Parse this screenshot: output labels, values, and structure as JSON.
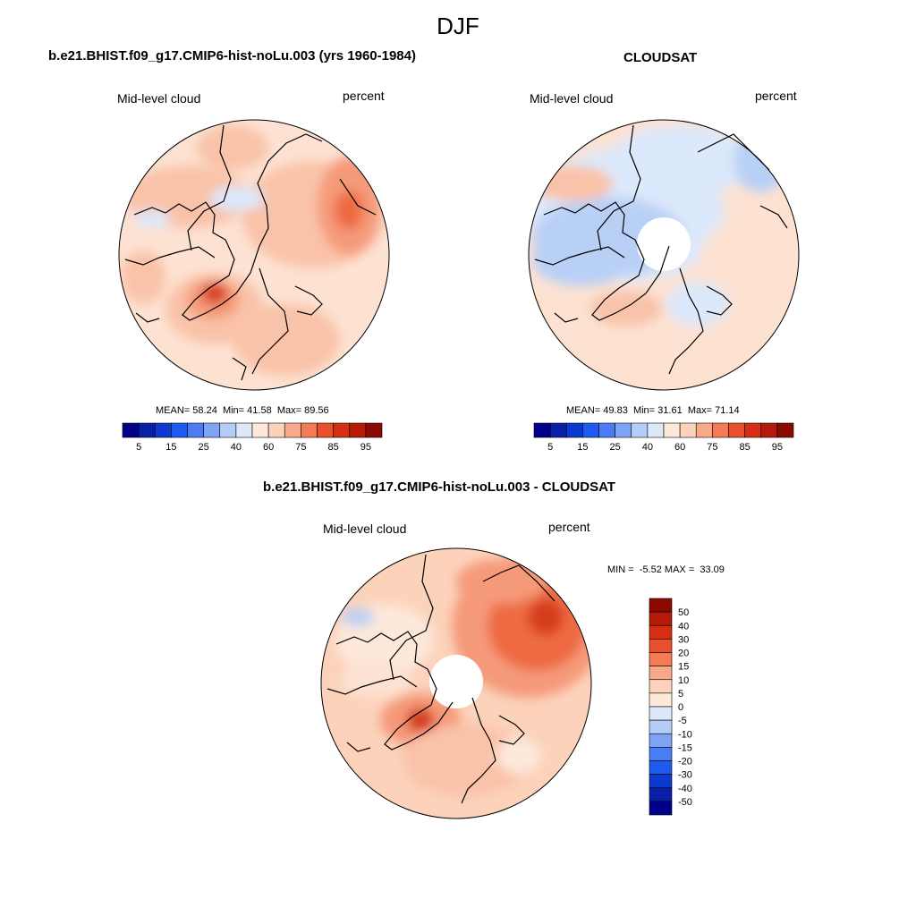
{
  "figure": {
    "title": "DJF",
    "variable": "Mid-level cloud",
    "units": "percent"
  },
  "panels": [
    {
      "title": "b.e21.BHIST.f09_g17.CMIP6-hist-noLu.003 (yrs 1960-1984)",
      "variable": "Mid-level cloud",
      "units": "percent",
      "stats": {
        "mean_label": "MEAN=",
        "mean": "58.24",
        "min_label": "Min=",
        "min": "41.58",
        "max_label": "Max=",
        "max": "89.56"
      }
    },
    {
      "title": "CLOUDSAT",
      "variable": "Mid-level cloud",
      "units": "percent",
      "stats": {
        "mean_label": "MEAN=",
        "mean": "49.83",
        "min_label": "Min=",
        "min": "31.61",
        "max_label": "Max=",
        "max": "71.14"
      }
    },
    {
      "title": "b.e21.BHIST.f09_g17.CMIP6-hist-noLu.003 - CLOUDSAT",
      "variable": "Mid-level cloud",
      "units": "percent",
      "stats": {
        "min_label": "MIN =",
        "min": "-5.52",
        "max_label": "MAX =",
        "max": "33.09"
      }
    }
  ],
  "colorbar_abs": {
    "labels": [
      "5",
      "15",
      "25",
      "40",
      "60",
      "75",
      "85",
      "95"
    ],
    "colors": [
      "#00008b",
      "#0a1fa8",
      "#0c3ad0",
      "#1e5af0",
      "#4a7cf5",
      "#7fa3f5",
      "#b4cdf7",
      "#dde9fb",
      "#fde8da",
      "#fcd2bb",
      "#f9a98a",
      "#f57b55",
      "#e8502e",
      "#d42e13",
      "#b51a08",
      "#8b0a00"
    ]
  },
  "colorbar_diff": {
    "labels": [
      "50",
      "40",
      "30",
      "20",
      "15",
      "10",
      "5",
      "0",
      "-5",
      "-10",
      "-15",
      "-20",
      "-30",
      "-40",
      "-50"
    ],
    "colors": [
      "#8b0a00",
      "#b51a08",
      "#d42e13",
      "#e8502e",
      "#f57b55",
      "#f9a98a",
      "#fcd2bb",
      "#fde8da",
      "#dde9fb",
      "#b4cdf7",
      "#7fa3f5",
      "#4a7cf5",
      "#1e5af0",
      "#0c3ad0",
      "#0a1fa8",
      "#00008b"
    ]
  },
  "map_colors": {
    "pale_red": "#fde2d2",
    "light_red": "#f9c3a9",
    "mid_red": "#f59a79",
    "red": "#ee6a43",
    "dark_red": "#d63e1a",
    "pale_blue": "#dce8fb",
    "light_blue": "#b9d0f6",
    "mid_blue": "#94b4f1"
  }
}
